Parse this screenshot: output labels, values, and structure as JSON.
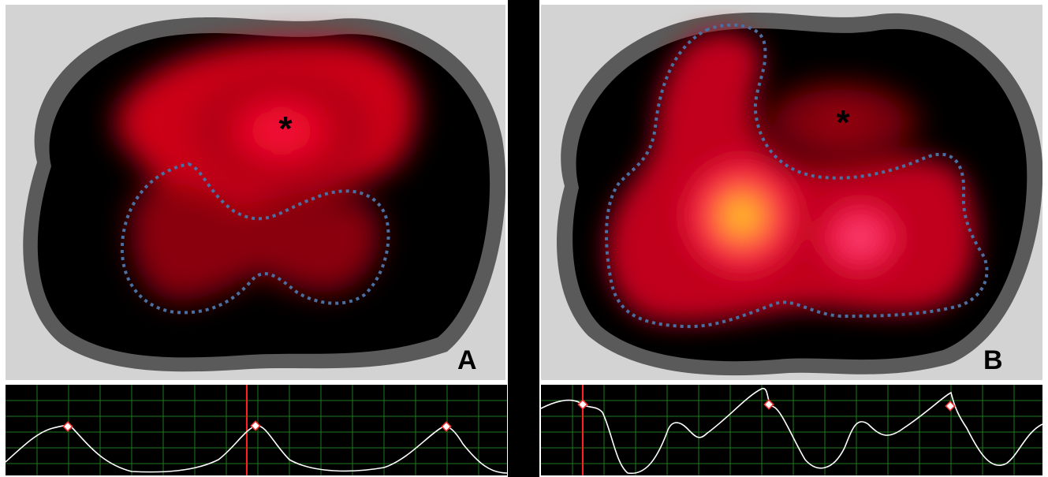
{
  "figure": {
    "panels": [
      {
        "letter": "A",
        "marker": "*",
        "heatmap": "red-dominant-ventral",
        "region_outline": "dorsal-dashed-blue",
        "waveform": "periodic-peaks-with-markers"
      },
      {
        "letter": "B",
        "marker": "*",
        "heatmap": "yellow-hotspot-dorsal",
        "region_outline": "dorsal-dashed-blue",
        "waveform": "periodic-peaks-with-markers"
      }
    ]
  },
  "colors": {
    "background": "#d3d3d3",
    "outline_ring": "#5a5a5a",
    "interior": "#000000",
    "dashed_outline": "#4a6fa0",
    "grid": "#1f7a1f",
    "trace": "#ffffff",
    "cursor": "#ff2020",
    "marker": "#ff6060"
  }
}
